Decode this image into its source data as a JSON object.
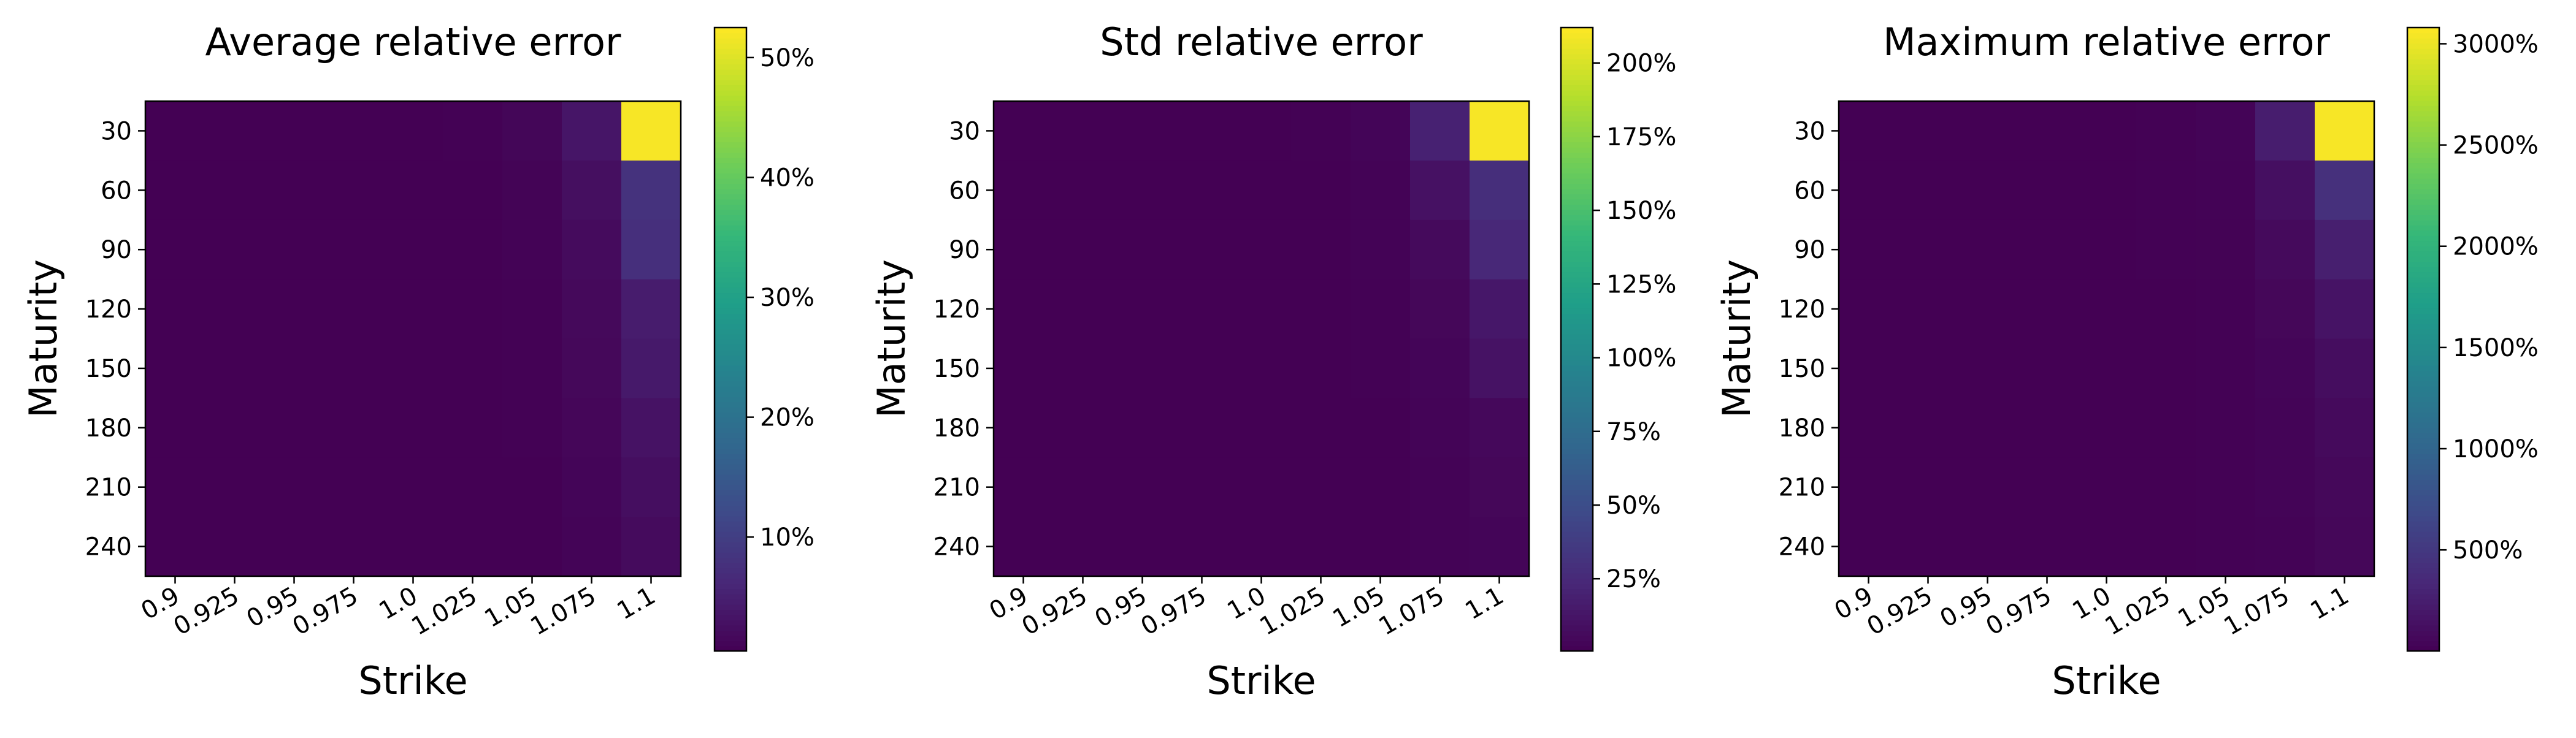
{
  "chart_data": [
    {
      "type": "heatmap",
      "title": "Average relative error",
      "xlabel": "Strike",
      "ylabel": "Maturity",
      "x_categories": [
        "0.9",
        "0.925",
        "0.95",
        "0.975",
        "1.0",
        "1.025",
        "1.05",
        "1.075",
        "1.1"
      ],
      "y_categories": [
        "30",
        "60",
        "90",
        "120",
        "150",
        "180",
        "210",
        "240"
      ],
      "values": [
        [
          0.2,
          0.2,
          0.3,
          0.3,
          0.4,
          0.6,
          1.2,
          3.5,
          52.0
        ],
        [
          0.2,
          0.2,
          0.2,
          0.3,
          0.3,
          0.5,
          0.9,
          2.5,
          8.0
        ],
        [
          0.2,
          0.2,
          0.2,
          0.3,
          0.3,
          0.4,
          0.8,
          2.0,
          7.5
        ],
        [
          0.2,
          0.2,
          0.2,
          0.2,
          0.3,
          0.4,
          0.7,
          1.7,
          4.5
        ],
        [
          0.2,
          0.2,
          0.2,
          0.2,
          0.3,
          0.4,
          0.6,
          1.5,
          4.0
        ],
        [
          0.2,
          0.2,
          0.2,
          0.2,
          0.3,
          0.3,
          0.6,
          1.3,
          3.0
        ],
        [
          0.2,
          0.2,
          0.2,
          0.2,
          0.2,
          0.3,
          0.5,
          1.1,
          2.4
        ],
        [
          0.2,
          0.2,
          0.2,
          0.2,
          0.2,
          0.3,
          0.5,
          1.0,
          2.0
        ]
      ],
      "vmin": 0.5,
      "vmax": 52.5,
      "colorbar_ticks": [
        10,
        20,
        30,
        40,
        50
      ],
      "colorbar_labels": [
        "10%",
        "20%",
        "30%",
        "40%",
        "50%"
      ],
      "colormap": "viridis"
    },
    {
      "type": "heatmap",
      "title": "Std relative error",
      "xlabel": "Strike",
      "ylabel": "Maturity",
      "x_categories": [
        "0.9",
        "0.925",
        "0.95",
        "0.975",
        "1.0",
        "1.025",
        "1.05",
        "1.075",
        "1.1"
      ],
      "y_categories": [
        "30",
        "60",
        "90",
        "120",
        "150",
        "180",
        "210",
        "240"
      ],
      "values": [
        [
          0.2,
          0.2,
          0.3,
          0.4,
          0.6,
          1.2,
          3.0,
          20.0,
          210.0
        ],
        [
          0.2,
          0.2,
          0.2,
          0.3,
          0.4,
          0.8,
          2.0,
          10.0,
          28.0
        ],
        [
          0.2,
          0.2,
          0.2,
          0.3,
          0.4,
          0.7,
          1.5,
          6.0,
          24.0
        ],
        [
          0.2,
          0.2,
          0.2,
          0.2,
          0.3,
          0.6,
          1.2,
          4.0,
          14.0
        ],
        [
          0.2,
          0.2,
          0.2,
          0.2,
          0.3,
          0.5,
          1.0,
          3.0,
          11.0
        ],
        [
          0.2,
          0.2,
          0.2,
          0.2,
          0.3,
          0.4,
          0.8,
          2.5,
          5.0
        ],
        [
          0.2,
          0.2,
          0.2,
          0.2,
          0.2,
          0.4,
          0.7,
          2.0,
          4.0
        ],
        [
          0.2,
          0.2,
          0.2,
          0.2,
          0.2,
          0.3,
          0.6,
          1.5,
          3.0
        ]
      ],
      "vmin": 0.5,
      "vmax": 212.0,
      "colorbar_ticks": [
        25,
        50,
        75,
        100,
        125,
        150,
        175,
        200
      ],
      "colorbar_labels": [
        "25%",
        "50%",
        "75%",
        "100%",
        "125%",
        "150%",
        "175%",
        "200%"
      ],
      "colormap": "viridis"
    },
    {
      "type": "heatmap",
      "title": "Maximum relative error",
      "xlabel": "Strike",
      "ylabel": "Maturity",
      "x_categories": [
        "0.9",
        "0.925",
        "0.95",
        "0.975",
        "1.0",
        "1.025",
        "1.05",
        "1.075",
        "1.1"
      ],
      "y_categories": [
        "30",
        "60",
        "90",
        "120",
        "150",
        "180",
        "210",
        "240"
      ],
      "values": [
        [
          1,
          1,
          2,
          3,
          5,
          10,
          30,
          250,
          3050
        ],
        [
          1,
          1,
          1,
          2,
          4,
          7,
          20,
          120,
          420
        ],
        [
          1,
          1,
          1,
          2,
          3,
          6,
          15,
          80,
          260
        ],
        [
          1,
          1,
          1,
          2,
          3,
          5,
          12,
          50,
          160
        ],
        [
          1,
          1,
          1,
          1,
          2,
          4,
          10,
          40,
          110
        ],
        [
          1,
          1,
          1,
          1,
          2,
          4,
          8,
          30,
          80
        ],
        [
          1,
          1,
          1,
          1,
          2,
          3,
          7,
          25,
          60
        ],
        [
          1,
          1,
          1,
          1,
          2,
          3,
          6,
          20,
          50
        ]
      ],
      "vmin": 1,
      "vmax": 3080,
      "colorbar_ticks": [
        500,
        1000,
        1500,
        2000,
        2500,
        3000
      ],
      "colorbar_labels": [
        "500%",
        "1000%",
        "1500%",
        "2000%",
        "2500%",
        "3000%"
      ],
      "colormap": "viridis"
    }
  ]
}
